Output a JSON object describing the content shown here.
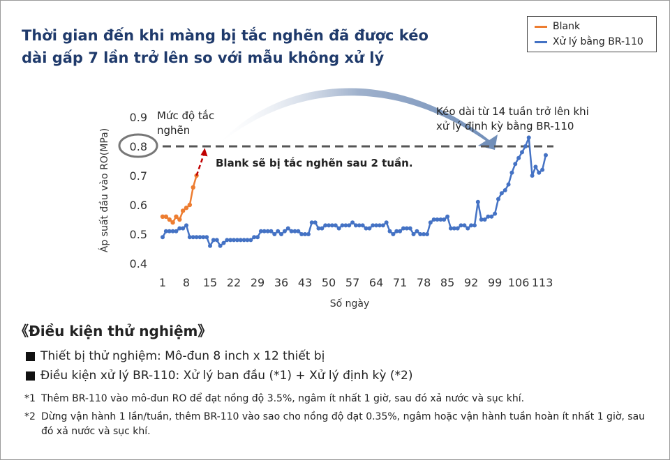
{
  "headline": {
    "line1": "Thời gian đến khi màng bị tắc nghẽn đã được kéo",
    "line2": "dài gấp 7 lần trở lên so với mẫu không xử lý"
  },
  "chart_data": {
    "type": "line",
    "xlabel": "Số ngày",
    "ylabel": "Áp suất đầu vào RO(MPa)",
    "ylim": [
      0.4,
      0.9
    ],
    "yticks": [
      "0.4",
      "0.5",
      "0.6",
      "0.7",
      "0.8",
      "0.9"
    ],
    "xlim": [
      1,
      114
    ],
    "xticks": [
      "1",
      "8",
      "15",
      "22",
      "29",
      "36",
      "43",
      "50",
      "57",
      "64",
      "71",
      "78",
      "85",
      "92",
      "99",
      "106",
      "113"
    ],
    "threshold": 0.8,
    "legend_position": "top-right",
    "series": [
      {
        "name": "Blank",
        "color": "#ed7d31",
        "x": [
          1,
          2,
          3,
          4,
          5,
          6,
          7,
          8,
          9,
          10,
          11,
          12
        ],
        "y": [
          0.56,
          0.56,
          0.55,
          0.54,
          0.56,
          0.55,
          0.58,
          0.59,
          0.6,
          0.66,
          0.7,
          0.78
        ]
      },
      {
        "name": "Xử lý bằng BR-110",
        "color": "#4472c4",
        "x": [
          1,
          2,
          3,
          4,
          5,
          6,
          7,
          8,
          9,
          10,
          11,
          12,
          13,
          14,
          15,
          16,
          17,
          18,
          19,
          20,
          21,
          22,
          23,
          24,
          25,
          26,
          27,
          28,
          29,
          30,
          31,
          32,
          33,
          34,
          35,
          36,
          37,
          38,
          39,
          40,
          41,
          42,
          43,
          44,
          45,
          46,
          47,
          48,
          49,
          50,
          51,
          52,
          53,
          54,
          55,
          56,
          57,
          58,
          59,
          60,
          61,
          62,
          63,
          64,
          65,
          66,
          67,
          68,
          69,
          70,
          71,
          72,
          73,
          74,
          75,
          76,
          77,
          78,
          79,
          80,
          81,
          82,
          83,
          84,
          85,
          86,
          87,
          88,
          89,
          90,
          91,
          92,
          93,
          94,
          95,
          96,
          97,
          98,
          99,
          100,
          101,
          102,
          103,
          104,
          105,
          106,
          107,
          108,
          109,
          110,
          111,
          112,
          113,
          114
        ],
        "y": [
          0.49,
          0.51,
          0.51,
          0.51,
          0.51,
          0.52,
          0.52,
          0.53,
          0.49,
          0.49,
          0.49,
          0.49,
          0.49,
          0.49,
          0.46,
          0.48,
          0.48,
          0.46,
          0.47,
          0.48,
          0.48,
          0.48,
          0.48,
          0.48,
          0.48,
          0.48,
          0.48,
          0.49,
          0.49,
          0.51,
          0.51,
          0.51,
          0.51,
          0.5,
          0.51,
          0.5,
          0.51,
          0.52,
          0.51,
          0.51,
          0.51,
          0.5,
          0.5,
          0.5,
          0.54,
          0.54,
          0.52,
          0.52,
          0.53,
          0.53,
          0.53,
          0.53,
          0.52,
          0.53,
          0.53,
          0.53,
          0.54,
          0.53,
          0.53,
          0.53,
          0.52,
          0.52,
          0.53,
          0.53,
          0.53,
          0.53,
          0.54,
          0.51,
          0.5,
          0.51,
          0.51,
          0.52,
          0.52,
          0.52,
          0.5,
          0.51,
          0.5,
          0.5,
          0.5,
          0.54,
          0.55,
          0.55,
          0.55,
          0.55,
          0.56,
          0.52,
          0.52,
          0.52,
          0.53,
          0.53,
          0.52,
          0.53,
          0.53,
          0.61,
          0.55,
          0.55,
          0.56,
          0.56,
          0.57,
          0.62,
          0.64,
          0.65,
          0.67,
          0.71,
          0.74,
          0.76,
          0.78,
          0.8,
          0.83,
          0.7,
          0.73,
          0.71,
          0.72,
          0.77
        ]
      }
    ],
    "annotations": {
      "clog_level": "Mức độ tắc\nnghẽn",
      "blank_clogs": "Blank sẽ bị tắc nghẽn sau 2 tuần.",
      "extended": "Kéo dài từ 14 tuần trở lên khi\nxử lý định kỳ bằng BR-110"
    }
  },
  "colors": {
    "headline": "#1f3a6b",
    "blank": "#ed7d31",
    "treated": "#4472c4",
    "threshold": "#555555",
    "arrow_red": "#c00000"
  },
  "conditions": {
    "title": "《Điều kiện thử nghiệm》",
    "bullets": [
      "Thiết bị thử nghiệm: Mô-đun 8 inch x 12 thiết bị",
      "Điều kiện xử lý BR-110: Xử lý ban đầu (*1) + Xử lý định kỳ (*2)"
    ],
    "notes": [
      {
        "mark": "*1",
        "text": "Thêm BR-110 vào mô-đun RO để đạt nồng độ 3.5%, ngâm ít nhất 1 giờ, sau đó xả nước và sục khí."
      },
      {
        "mark": "*2",
        "text": "Dừng vận hành 1 lần/tuần, thêm BR-110 vào sao cho nồng độ đạt 0.35%, ngâm hoặc vận hành tuần hoàn ít nhất 1 giờ, sau đó xả nước và sục khí."
      }
    ]
  }
}
